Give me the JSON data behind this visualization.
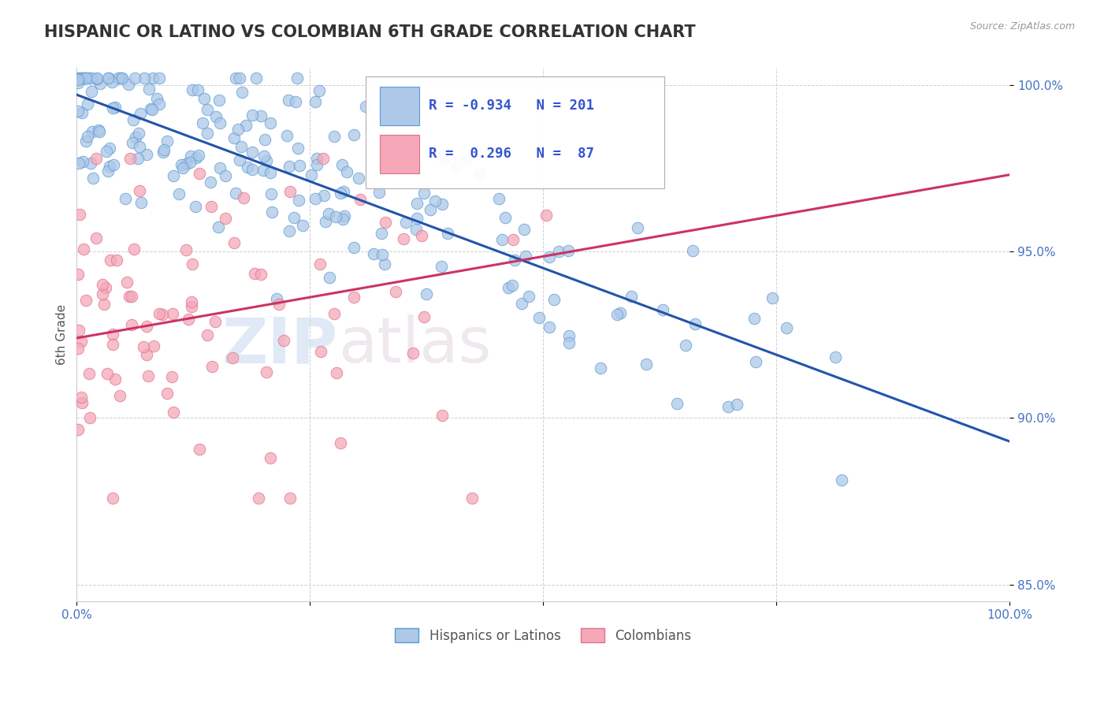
{
  "title": "HISPANIC OR LATINO VS COLOMBIAN 6TH GRADE CORRELATION CHART",
  "source": "Source: ZipAtlas.com",
  "ylabel": "6th Grade",
  "watermark": "ZIPatlas",
  "xmin": 0.0,
  "xmax": 1.0,
  "ymin": 0.845,
  "ymax": 1.005,
  "yticks": [
    0.85,
    0.9,
    0.95,
    1.0
  ],
  "ytick_labels": [
    "85.0%",
    "90.0%",
    "95.0%",
    "100.0%"
  ],
  "blue_R": -0.934,
  "blue_N": 201,
  "pink_R": 0.296,
  "pink_N": 87,
  "blue_color": "#adc8e8",
  "blue_edge": "#5b9bd5",
  "pink_color": "#f4a8b8",
  "pink_edge": "#e07090",
  "blue_line_color": "#2255aa",
  "pink_line_color": "#cc3366",
  "legend_blue_label": "Hispanics or Latinos",
  "legend_pink_label": "Colombians",
  "title_fontsize": 15,
  "axis_label_fontsize": 11,
  "tick_fontsize": 11,
  "legend_fontsize": 12,
  "blue_trend_x": [
    0.0,
    1.0
  ],
  "blue_trend_y": [
    0.997,
    0.893
  ],
  "pink_trend_x": [
    0.0,
    1.0
  ],
  "pink_trend_y": [
    0.924,
    0.973
  ],
  "background_color": "#ffffff",
  "grid_color": "#cccccc",
  "grid_linestyle": "--"
}
